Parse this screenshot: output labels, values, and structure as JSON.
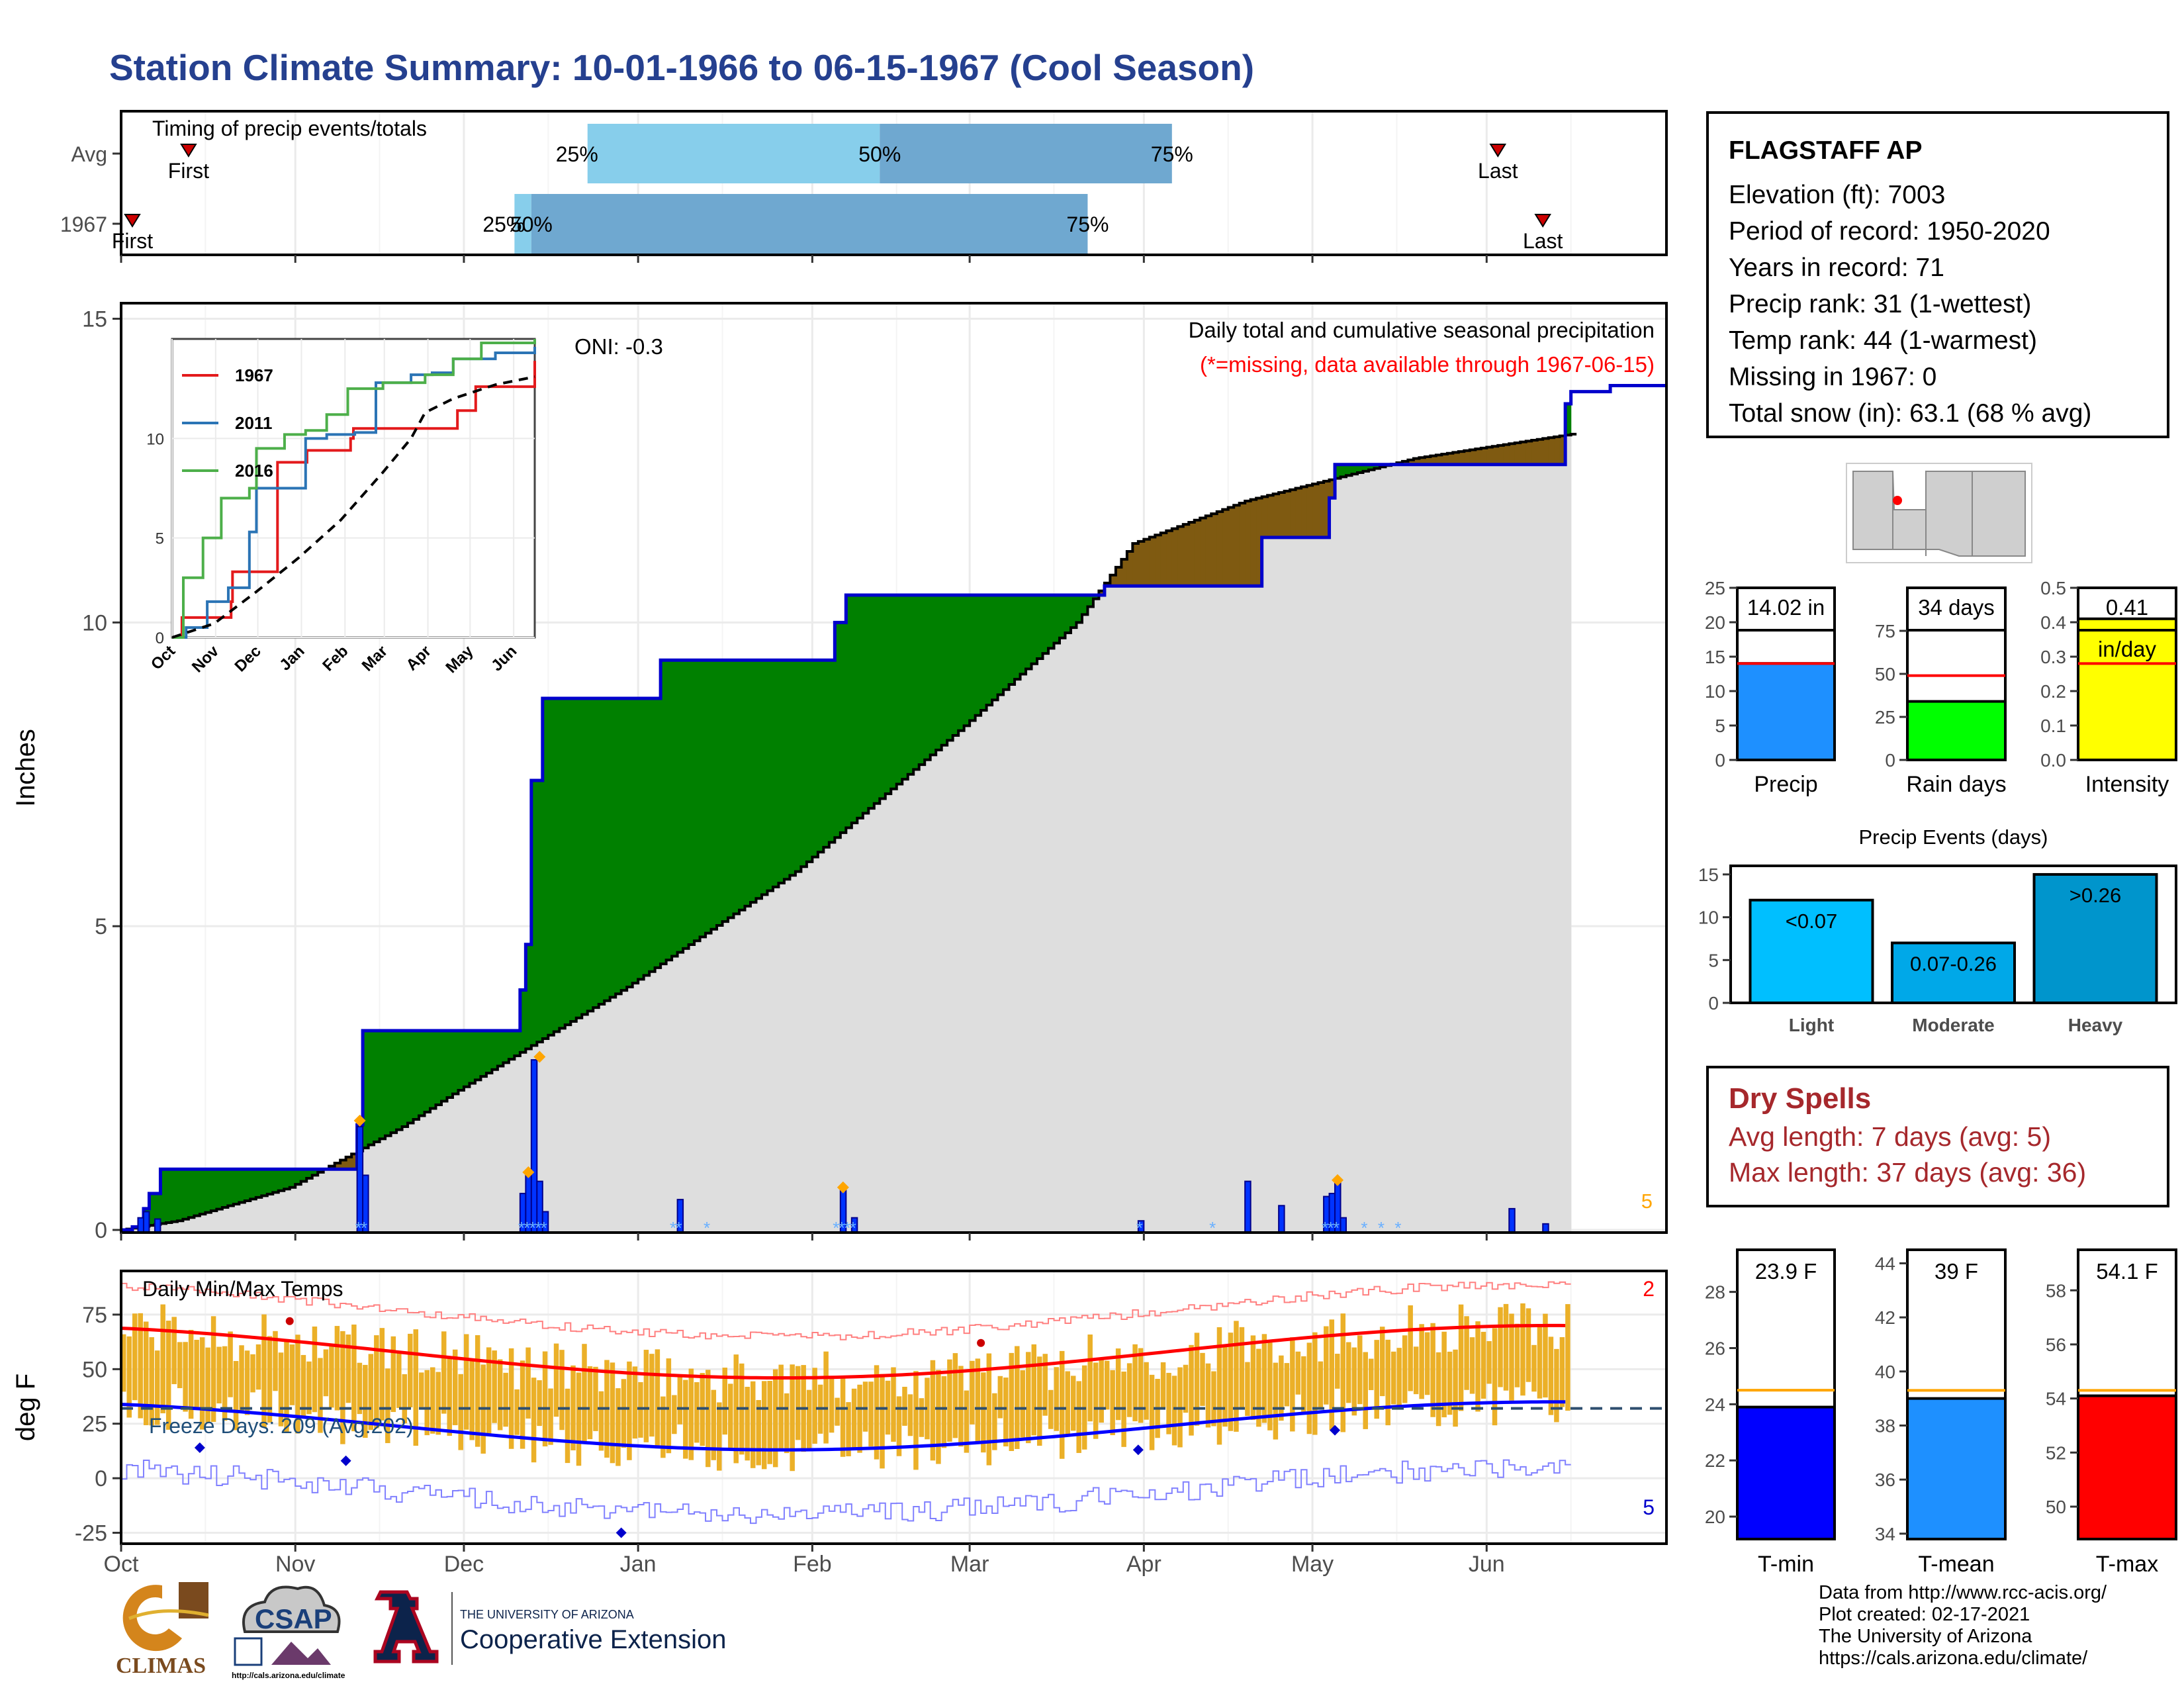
{
  "title": "Station Climate Summary: 10-01-1966 to 06-15-1967 (Cool Season)",
  "station": {
    "name": "FLAGSTAFF AP",
    "lines": [
      "Elevation (ft): 7003",
      "Period of record: 1950-2020",
      "Years in record: 71",
      "Precip rank: 31 (1-wettest)",
      "Temp rank: 44 (1-warmest)",
      "Missing in 1967: 0",
      "Total snow (in): 63.1 (68 % avg)"
    ]
  },
  "dry_spells": {
    "title": "Dry Spells",
    "avg": "Avg length: 7 days (avg: 5)",
    "max": "Max length: 37 days (avg: 36)"
  },
  "footer": [
    "Data from http://www.rcc-acis.org/",
    "Plot created: 02-17-2021",
    "The University of Arizona",
    "https://cals.arizona.edu/climate/"
  ],
  "logos": {
    "climas": "CLIMAS",
    "csap": "CSAP",
    "csap_url": "http://cals.arizona.edu/climate",
    "ua_small": "THE UNIVERSITY OF ARIZONA",
    "ua_big": "Cooperative Extension"
  },
  "colors": {
    "title": "#25408f",
    "green": "#008000",
    "brown": "#7f5a11",
    "gray_fill": "#dedede",
    "blue_line": "#0000cc",
    "orange": "#ffa500",
    "red": "#ff0000",
    "temp_bar": "#ebb028"
  },
  "months": [
    "Oct",
    "Nov",
    "Dec",
    "Jan",
    "Feb",
    "Mar",
    "Apr",
    "May",
    "Jun"
  ],
  "month_days": [
    0,
    31,
    61,
    92,
    123,
    151,
    182,
    212,
    243
  ],
  "season_days": 258,
  "chart_data": [
    {
      "id": "timing",
      "type": "bar",
      "title": "Timing of precip events/totals",
      "rows": [
        {
          "label": "Avg",
          "first": 12,
          "last": 245,
          "p25": 83,
          "p50": 135,
          "p75": 187,
          "labels": {
            "first": "First",
            "last": "Last",
            "p25": "25%",
            "p50": "50%",
            "p75": "75%"
          }
        },
        {
          "label": "1967",
          "first": 2,
          "last": 253,
          "p25": 70,
          "p50": 73,
          "p75": 172,
          "labels": {
            "first": "First",
            "last": "Last",
            "p25": "25%",
            "p50": "50%",
            "p75": "75%"
          }
        }
      ]
    },
    {
      "id": "precip",
      "type": "area",
      "ylabel": "Inches",
      "ylim": [
        0,
        15.3
      ],
      "yticks": [
        0,
        5,
        10,
        15
      ],
      "annotation": "Daily total and cumulative seasonal precipitation",
      "missing_note": "(*=missing, data available through 1967-06-15)",
      "oni": "ONI: -0.3",
      "count_label": "5",
      "cumulative_1967": [
        [
          0,
          0
        ],
        [
          2,
          0.05
        ],
        [
          4,
          0.35
        ],
        [
          5,
          0.6
        ],
        [
          7,
          1.0
        ],
        [
          41,
          1.0
        ],
        [
          42,
          1.73
        ],
        [
          43,
          3.28
        ],
        [
          70,
          3.28
        ],
        [
          71,
          3.95
        ],
        [
          72,
          4.7
        ],
        [
          73,
          7.4
        ],
        [
          75,
          8.75
        ],
        [
          90,
          8.75
        ],
        [
          96,
          9.38
        ],
        [
          114,
          9.38
        ],
        [
          127,
          10.0
        ],
        [
          129,
          10.45
        ],
        [
          172,
          10.45
        ],
        [
          175,
          10.6
        ],
        [
          202,
          10.6
        ],
        [
          203,
          11.4
        ],
        [
          214,
          11.4
        ],
        [
          215,
          12.05
        ],
        [
          216,
          12.6
        ],
        [
          250,
          12.6
        ],
        [
          257,
          13.6
        ],
        [
          258,
          13.8
        ],
        [
          265,
          13.9
        ],
        [
          275,
          13.9
        ]
      ],
      "cumulative_avg": [
        [
          0,
          0
        ],
        [
          10,
          0.15
        ],
        [
          30,
          0.7
        ],
        [
          50,
          1.7
        ],
        [
          60,
          2.3
        ],
        [
          90,
          4.0
        ],
        [
          120,
          5.9
        ],
        [
          150,
          8.3
        ],
        [
          170,
          10.0
        ],
        [
          180,
          11.3
        ],
        [
          200,
          12.0
        ],
        [
          230,
          12.7
        ],
        [
          258,
          13.1
        ]
      ],
      "daily": [
        [
          3,
          0.2
        ],
        [
          4,
          0.3
        ],
        [
          6,
          0.18
        ],
        [
          42,
          1.7
        ],
        [
          43,
          0.9
        ],
        [
          71,
          0.6
        ],
        [
          72,
          0.9
        ],
        [
          73,
          2.8
        ],
        [
          74,
          0.8
        ],
        [
          75,
          0.3
        ],
        [
          99,
          0.5
        ],
        [
          128,
          0.65
        ],
        [
          130,
          0.2
        ],
        [
          181,
          0.15
        ],
        [
          200,
          0.8
        ],
        [
          206,
          0.4
        ],
        [
          214,
          0.55
        ],
        [
          215,
          0.6
        ],
        [
          216,
          0.78
        ],
        [
          217,
          0.2
        ],
        [
          247,
          0.35
        ],
        [
          253,
          0.1
        ]
      ],
      "max_markers": [
        [
          42,
          1.8
        ],
        [
          72,
          0.95
        ],
        [
          74,
          2.85
        ],
        [
          128,
          0.7
        ],
        [
          216,
          0.82
        ]
      ],
      "inset": {
        "type": "line",
        "ylim": [
          0,
          15
        ],
        "yticks": [
          0,
          5,
          10
        ],
        "series": [
          {
            "name": "1967",
            "color": "#e31a1c"
          },
          {
            "name": "2011",
            "color": "#2b74b5"
          },
          {
            "name": "2016",
            "color": "#4daf4a"
          }
        ]
      }
    },
    {
      "id": "temps",
      "type": "bar",
      "title": "Daily Min/Max Temps",
      "ylabel": "deg F",
      "ylim": [
        -30,
        95
      ],
      "yticks": [
        -25,
        0,
        25,
        50,
        75
      ],
      "freeze": "Freeze Days: 209 (Avg:202)",
      "record_high_count": "2",
      "record_low_count": "5"
    },
    {
      "id": "summary_bars",
      "type": "bar",
      "items": [
        {
          "label": "Precip",
          "value": 14.02,
          "avg": 14.0,
          "text": "14.02 in",
          "color": "#1e90ff",
          "ylim": [
            0,
            25
          ],
          "yticks": [
            0,
            5,
            10,
            15,
            20,
            25
          ]
        },
        {
          "label": "Rain days",
          "value": 34,
          "avg": 49,
          "text": "34 days",
          "color": "#00ff00",
          "ylim": [
            0,
            100
          ],
          "yticks": [
            0,
            25,
            50,
            75
          ]
        },
        {
          "label": "Intensity",
          "value": 0.41,
          "avg": 0.28,
          "text": "0.41",
          "subtext": "in/day",
          "color": "#ffff00",
          "ylim": [
            0,
            0.5
          ],
          "yticks": [
            0.0,
            0.1,
            0.2,
            0.3,
            0.4,
            0.5
          ]
        }
      ]
    },
    {
      "id": "events",
      "type": "bar",
      "title": "Precip Events (days)",
      "categories": [
        "Light",
        "Moderate",
        "Heavy"
      ],
      "values": [
        12,
        7,
        15
      ],
      "bar_labels": [
        "<0.07",
        "0.07-0.26",
        ">0.26"
      ],
      "colors": [
        "#00bfff",
        "#00a8e8",
        "#0095cc"
      ],
      "ylim": [
        0,
        16
      ],
      "yticks": [
        0,
        5,
        10,
        15
      ]
    },
    {
      "id": "temp_summary",
      "type": "bar",
      "items": [
        {
          "label": "T-min",
          "value": 23.9,
          "avg": 24.5,
          "text": "23.9 F",
          "color": "#0000ff",
          "ylim": [
            19.2,
            29.5
          ],
          "yticks": [
            20,
            22,
            24,
            26,
            28
          ]
        },
        {
          "label": "T-mean",
          "value": 39,
          "avg": 39.3,
          "text": "39 F",
          "color": "#1e90ff",
          "ylim": [
            33.8,
            44.5
          ],
          "yticks": [
            34,
            36,
            38,
            40,
            42,
            44
          ]
        },
        {
          "label": "T-max",
          "value": 54.1,
          "avg": 54.3,
          "text": "54.1 F",
          "color": "#ff0000",
          "ylim": [
            48.8,
            59.5
          ],
          "yticks": [
            50,
            52,
            54,
            56,
            58
          ]
        }
      ]
    }
  ]
}
